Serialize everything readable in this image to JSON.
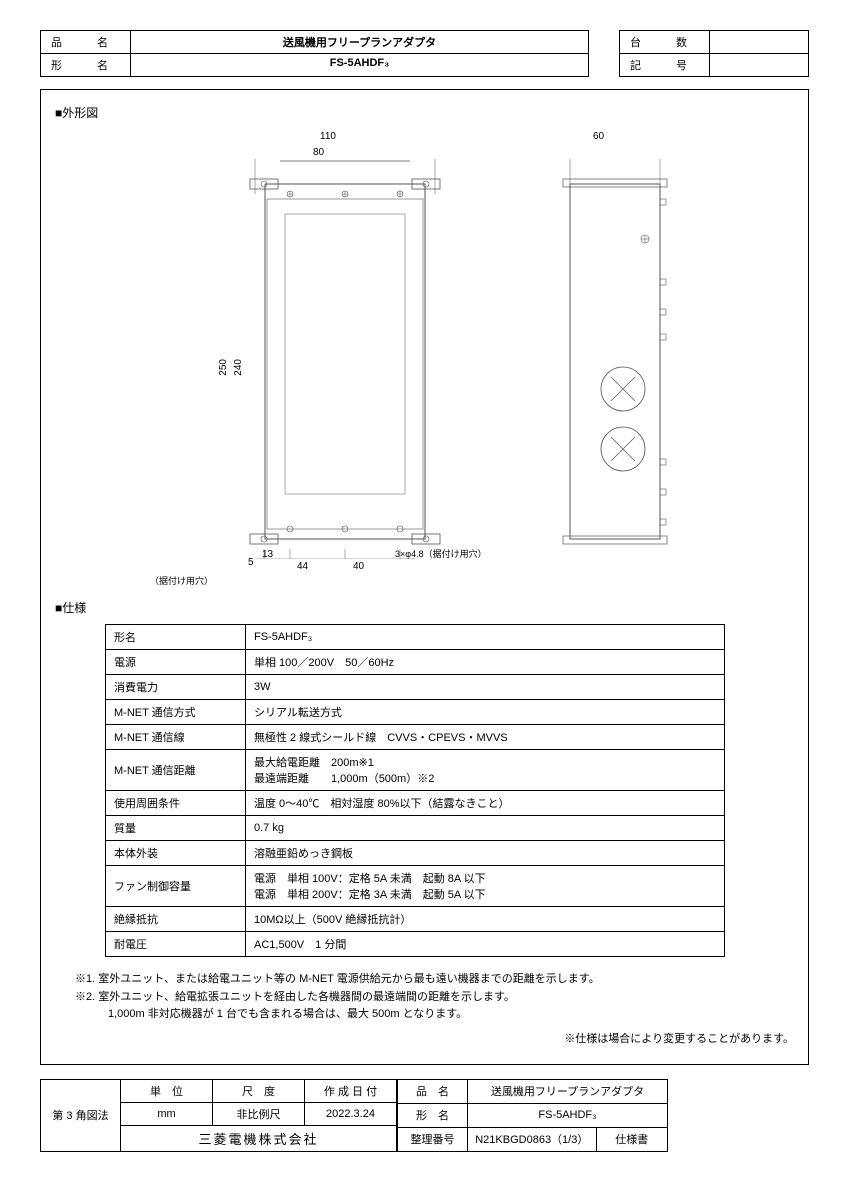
{
  "header": {
    "product_name_label": "品　名",
    "product_name": "送風機用フリープランアダプタ",
    "model_label": "形　名",
    "model": "FS-5AHDF₃",
    "qty_label": "台　数",
    "qty": "",
    "mark_label": "記　号",
    "mark": ""
  },
  "sections": {
    "outline": "■外形図",
    "spec": "■仕様"
  },
  "drawing": {
    "dims": {
      "w110": "110",
      "w80": "80",
      "w60": "60",
      "h250": "250",
      "h240": "240",
      "d5": "5",
      "d13": "13",
      "d44": "44",
      "d40": "40",
      "hole_note": "3×φ4.8（据付け用穴）",
      "hole_note2": "（据付け用穴）"
    },
    "colors": {
      "line": "#555",
      "text": "#000",
      "fill": "#fff"
    }
  },
  "spec": [
    {
      "label": "形名",
      "value": "FS-5AHDF₃"
    },
    {
      "label": "電源",
      "value": "単相 100／200V　50／60Hz"
    },
    {
      "label": "消費電力",
      "value": "3W"
    },
    {
      "label": "M-NET 通信方式",
      "value": "シリアル転送方式"
    },
    {
      "label": "M-NET 通信線",
      "value": "無極性 2 線式シールド線　CVVS・CPEVS・MVVS"
    },
    {
      "label": "M-NET 通信距離",
      "value": "最大給電距離　200m※1\n最遠端距離　　1,000m（500m）※2"
    },
    {
      "label": "使用周囲条件",
      "value": "温度 0～40℃　相対湿度 80%以下（結露なきこと）"
    },
    {
      "label": "質量",
      "value": "0.7 kg"
    },
    {
      "label": "本体外装",
      "value": "溶融亜鉛めっき鋼板"
    },
    {
      "label": "ファン制御容量",
      "value": "電源　単相 100V：定格 5A 未満　起動 8A 以下\n電源　単相 200V：定格 3A 未満　起動 5A 以下"
    },
    {
      "label": "絶縁抵抗",
      "value": "10MΩ以上（500V 絶縁抵抗計）"
    },
    {
      "label": "耐電圧",
      "value": "AC1,500V　1 分間"
    }
  ],
  "notes": {
    "n1": "※1. 室外ユニット、または給電ユニット等の M-NET 電源供給元から最も遠い機器までの距離を示します。",
    "n2": "※2. 室外ユニット、給電拡張ユニットを経由した各機器間の最遠端間の距離を示します。",
    "n2b": "　　　1,000m 非対応機器が 1 台でも含まれる場合は、最大 500m となります。",
    "disclaimer": "※仕様は場合により変更することがあります。"
  },
  "footer": {
    "projection": "第 3 角図法",
    "unit_label": "単　位",
    "unit": "mm",
    "scale_label": "尺　度",
    "scale": "非比例尺",
    "date_label": "作 成 日 付",
    "date": "2022.3.24",
    "company": "三菱電機株式会社",
    "prodname_label": "品　名",
    "prodname": "送風機用フリープランアダプタ",
    "modelname_label": "形　名",
    "modelname": "FS-5AHDF₃",
    "docno_label": "整理番号",
    "docno": "N21KBGD0863（1/3）",
    "doctype": "仕様書"
  }
}
